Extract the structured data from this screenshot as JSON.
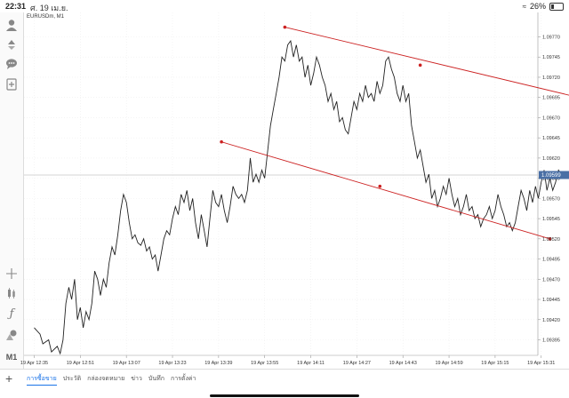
{
  "status_bar": {
    "time": "22:31",
    "date": "ศ. 19 เม.ย.",
    "battery": "26%"
  },
  "chart": {
    "symbol_label": "EURUSDm, M1",
    "current_price_label": "1.09599",
    "colors": {
      "price_line": "#222222",
      "trendline": "#cc2222",
      "current_line": "#c8c8c8",
      "grid": "#eeeeee"
    }
  },
  "chart_data": {
    "type": "line",
    "ylim": [
      1.0937,
      1.0979
    ],
    "y_ticks": [
      "1.09770",
      "1.09745",
      "1.09720",
      "1.09695",
      "1.09670",
      "1.09645",
      "1.09620",
      "1.09595",
      "1.09570",
      "1.09545",
      "1.09520",
      "1.09495",
      "1.09470",
      "1.09445",
      "1.09420",
      "1.09395"
    ],
    "x_ticks": [
      "19 Apr 12:35",
      "19 Apr 12:51",
      "19 Apr 13:07",
      "19 Apr 13:23",
      "19 Apr 13:39",
      "19 Apr 13:55",
      "19 Apr 14:11",
      "19 Apr 14:27",
      "19 Apr 14:43",
      "19 Apr 14:59",
      "19 Apr 15:15",
      "19 Apr 15:31"
    ],
    "x_tick_minutes": [
      0,
      16,
      32,
      48,
      64,
      80,
      96,
      112,
      128,
      144,
      160,
      176
    ],
    "current_price": 1.09599,
    "series": [
      {
        "values": [
          [
            0,
            1.0941
          ],
          [
            2,
            1.09402
          ],
          [
            3,
            1.0939
          ],
          [
            5,
            1.09395
          ],
          [
            6,
            1.0938
          ],
          [
            8,
            1.09387
          ],
          [
            9,
            1.09378
          ],
          [
            10,
            1.09395
          ],
          [
            11,
            1.0944
          ],
          [
            12,
            1.0946
          ],
          [
            13,
            1.09445
          ],
          [
            14,
            1.0947
          ],
          [
            15,
            1.0942
          ],
          [
            16,
            1.09435
          ],
          [
            17,
            1.0941
          ],
          [
            18,
            1.0943
          ],
          [
            19,
            1.0942
          ],
          [
            20,
            1.0944
          ],
          [
            21,
            1.0948
          ],
          [
            22,
            1.0947
          ],
          [
            23,
            1.0945
          ],
          [
            24,
            1.0947
          ],
          [
            25,
            1.0946
          ],
          [
            26,
            1.0949
          ],
          [
            27,
            1.0951
          ],
          [
            28,
            1.095
          ],
          [
            29,
            1.09525
          ],
          [
            30,
            1.09555
          ],
          [
            31,
            1.09575
          ],
          [
            32,
            1.09565
          ],
          [
            33,
            1.0954
          ],
          [
            34,
            1.0952
          ],
          [
            35,
            1.09525
          ],
          [
            36,
            1.09515
          ],
          [
            37,
            1.09512
          ],
          [
            38,
            1.0952
          ],
          [
            39,
            1.09505
          ],
          [
            40,
            1.0951
          ],
          [
            41,
            1.09495
          ],
          [
            42,
            1.095
          ],
          [
            43,
            1.0948
          ],
          [
            44,
            1.095
          ],
          [
            45,
            1.0952
          ],
          [
            46,
            1.0953
          ],
          [
            47,
            1.09525
          ],
          [
            48,
            1.09545
          ],
          [
            49,
            1.0956
          ],
          [
            50,
            1.0955
          ],
          [
            51,
            1.09575
          ],
          [
            52,
            1.09565
          ],
          [
            53,
            1.0958
          ],
          [
            54,
            1.09555
          ],
          [
            55,
            1.0957
          ],
          [
            56,
            1.0954
          ],
          [
            57,
            1.0952
          ],
          [
            58,
            1.0955
          ],
          [
            59,
            1.0953
          ],
          [
            60,
            1.0951
          ],
          [
            61,
            1.09545
          ],
          [
            62,
            1.0958
          ],
          [
            63,
            1.09565
          ],
          [
            64,
            1.0956
          ],
          [
            65,
            1.09575
          ],
          [
            66,
            1.09555
          ],
          [
            67,
            1.0954
          ],
          [
            68,
            1.0956
          ],
          [
            69,
            1.09585
          ],
          [
            70,
            1.09575
          ],
          [
            71,
            1.0957
          ],
          [
            72,
            1.09575
          ],
          [
            73,
            1.09565
          ],
          [
            74,
            1.0958
          ],
          [
            75,
            1.0962
          ],
          [
            76,
            1.0959
          ],
          [
            77,
            1.096
          ],
          [
            78,
            1.0959
          ],
          [
            79,
            1.09605
          ],
          [
            80,
            1.09595
          ],
          [
            82,
            1.0966
          ],
          [
            83,
            1.0968
          ],
          [
            84,
            1.097
          ],
          [
            85,
            1.0972
          ],
          [
            86,
            1.09745
          ],
          [
            87,
            1.0974
          ],
          [
            88,
            1.0976
          ],
          [
            89,
            1.09765
          ],
          [
            90,
            1.09745
          ],
          [
            91,
            1.0976
          ],
          [
            92,
            1.0974
          ],
          [
            93,
            1.09745
          ],
          [
            94,
            1.0972
          ],
          [
            95,
            1.09735
          ],
          [
            96,
            1.0971
          ],
          [
            97,
            1.09725
          ],
          [
            98,
            1.09745
          ],
          [
            99,
            1.09735
          ],
          [
            100,
            1.0972
          ],
          [
            101,
            1.0971
          ],
          [
            102,
            1.0969
          ],
          [
            103,
            1.097
          ],
          [
            104,
            1.0968
          ],
          [
            105,
            1.0969
          ],
          [
            106,
            1.09665
          ],
          [
            107,
            1.0967
          ],
          [
            108,
            1.09655
          ],
          [
            109,
            1.0965
          ],
          [
            110,
            1.0967
          ],
          [
            111,
            1.0969
          ],
          [
            112,
            1.0968
          ],
          [
            113,
            1.097
          ],
          [
            114,
            1.0969
          ],
          [
            115,
            1.0971
          ],
          [
            116,
            1.09695
          ],
          [
            117,
            1.097
          ],
          [
            118,
            1.0969
          ],
          [
            119,
            1.09715
          ],
          [
            120,
            1.097
          ],
          [
            121,
            1.0971
          ],
          [
            122,
            1.0974
          ],
          [
            123,
            1.09745
          ],
          [
            124,
            1.0973
          ],
          [
            125,
            1.0972
          ],
          [
            126,
            1.097
          ],
          [
            127,
            1.0969
          ],
          [
            128,
            1.0971
          ],
          [
            129,
            1.0969
          ],
          [
            130,
            1.097
          ],
          [
            131,
            1.0966
          ],
          [
            132,
            1.0964
          ],
          [
            133,
            1.0962
          ],
          [
            134,
            1.0963
          ],
          [
            135,
            1.0961
          ],
          [
            136,
            1.0959
          ],
          [
            137,
            1.096
          ],
          [
            138,
            1.0957
          ],
          [
            139,
            1.0958
          ],
          [
            140,
            1.0956
          ],
          [
            141,
            1.0957
          ],
          [
            142,
            1.09585
          ],
          [
            143,
            1.09575
          ],
          [
            144,
            1.09595
          ],
          [
            145,
            1.09575
          ],
          [
            146,
            1.0956
          ],
          [
            147,
            1.0957
          ],
          [
            148,
            1.0955
          ],
          [
            149,
            1.0956
          ],
          [
            150,
            1.09575
          ],
          [
            151,
            1.09555
          ],
          [
            152,
            1.0956
          ],
          [
            153,
            1.09545
          ],
          [
            154,
            1.0955
          ],
          [
            155,
            1.09535
          ],
          [
            156,
            1.09545
          ],
          [
            157,
            1.0955
          ],
          [
            158,
            1.0956
          ],
          [
            159,
            1.09545
          ],
          [
            160,
            1.09555
          ],
          [
            161,
            1.09575
          ],
          [
            162,
            1.0956
          ],
          [
            163,
            1.0955
          ],
          [
            164,
            1.09535
          ],
          [
            165,
            1.0954
          ],
          [
            166,
            1.0953
          ],
          [
            167,
            1.0954
          ],
          [
            168,
            1.0956
          ],
          [
            169,
            1.0958
          ],
          [
            170,
            1.0957
          ],
          [
            171,
            1.09555
          ],
          [
            172,
            1.0958
          ],
          [
            173,
            1.09565
          ],
          [
            174,
            1.09585
          ],
          [
            175,
            1.0957
          ],
          [
            176,
            1.0959
          ],
          [
            177,
            1.09605
          ],
          [
            178,
            1.0958
          ],
          [
            179,
            1.09595
          ],
          [
            180,
            1.0958
          ],
          [
            181,
            1.0959
          ],
          [
            182,
            1.09605
          ],
          [
            183,
            1.096
          ],
          [
            184,
            1.09598
          ]
        ]
      }
    ],
    "trendlines": [
      {
        "start": [
          87,
          1.09782
        ],
        "mid": [
          134,
          1.09735
        ],
        "end": [
          189,
          1.09695
        ]
      },
      {
        "start": [
          65,
          1.0964
        ],
        "mid": [
          120,
          1.09585
        ],
        "end": [
          179,
          1.0952
        ]
      }
    ]
  },
  "sidebar": {
    "icons": [
      "account-icon",
      "trade-icon",
      "chat-icon",
      "add-document-icon",
      "crosshair-icon",
      "indicators-icon",
      "function-icon",
      "objects-icon"
    ],
    "timeframe": "M1"
  },
  "bottom_tabs": {
    "add_label": "+",
    "tabs": [
      "การซื้อขาย",
      "ประวัติ",
      "กล่องจดหมาย",
      "ข่าว",
      "บันทึก",
      "การตั้งค่า"
    ]
  }
}
